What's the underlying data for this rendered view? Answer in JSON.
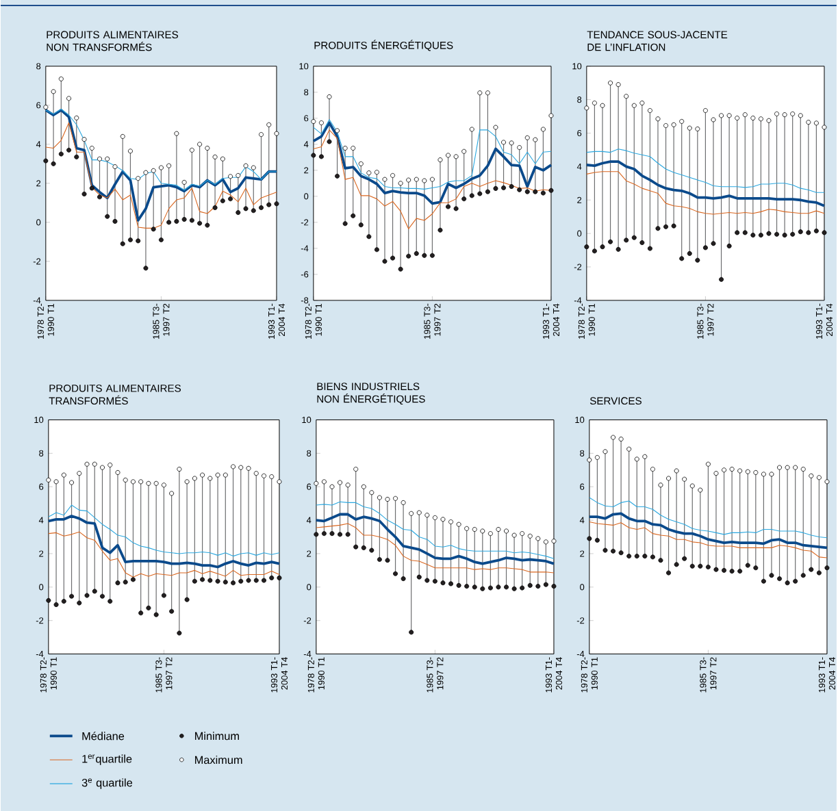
{
  "chart_data": [
    {
      "type": "line",
      "title": "PRODUITS ALIMENTAIRES NON TRANSFORMÉS",
      "legend": "bottom",
      "categories": [
        "1978 T2-1990 T1",
        null,
        null,
        null,
        null,
        null,
        null,
        null,
        null,
        null,
        null,
        null,
        null,
        null,
        null,
        "1985 T3-1997 T2",
        null,
        null,
        null,
        null,
        null,
        null,
        null,
        null,
        null,
        null,
        null,
        null,
        null,
        null,
        "1993 T1-2004 T4"
      ],
      "ylim": [
        -4,
        8
      ],
      "yticks": [
        -4,
        -2,
        0,
        2,
        4,
        6,
        8
      ],
      "series": [
        {
          "name": "Médiane",
          "color": "#0b4a8b",
          "values": [
            5.75,
            5.5,
            5.75,
            5.4,
            3.8,
            3.7,
            1.9,
            1.55,
            1.25,
            1.95,
            2.6,
            2.15,
            0.1,
            0.7,
            1.8,
            1.85,
            1.9,
            1.8,
            1.6,
            1.9,
            1.8,
            2.15,
            1.9,
            2.2,
            1.55,
            1.75,
            2.3,
            2.25,
            2.2,
            2.6,
            2.6
          ]
        },
        {
          "name": "1$^{er}$quartile",
          "color": "#d9661f",
          "values": [
            3.85,
            3.8,
            4.2,
            5.1,
            3.6,
            3.6,
            1.8,
            1.4,
            1.25,
            1.7,
            1.15,
            1.4,
            -0.25,
            -0.3,
            -0.3,
            -0.15,
            0.7,
            1.15,
            1.25,
            1.75,
            0.55,
            0.45,
            0.8,
            1.6,
            1.4,
            1.05,
            1.75,
            0.9,
            1.25,
            1.4,
            1.55
          ]
        },
        {
          "name": "3$^{e}$ quartile",
          "color": "#2aa7df",
          "values": [
            5.75,
            5.55,
            5.8,
            5.5,
            5.0,
            4.2,
            3.2,
            3.2,
            3.1,
            2.9,
            2.65,
            2.25,
            2.2,
            2.5,
            2.6,
            2.0,
            1.95,
            1.9,
            1.65,
            1.95,
            1.85,
            2.15,
            1.95,
            2.25,
            2.3,
            2.3,
            2.85,
            2.6,
            2.2,
            2.6,
            2.6
          ]
        },
        {
          "name": "Minimum",
          "type": "scatter",
          "marker": "circle",
          "color": "#231f20",
          "values": [
            3.15,
            3.0,
            3.5,
            3.7,
            3.35,
            1.45,
            1.75,
            1.3,
            0.3,
            0.05,
            -1.1,
            -0.9,
            -0.95,
            -2.35,
            -0.35,
            -0.9,
            0.0,
            0.05,
            0.15,
            0.1,
            -0.05,
            -0.15,
            0.75,
            1.1,
            1.2,
            0.5,
            0.7,
            0.6,
            0.75,
            0.9,
            0.95
          ]
        },
        {
          "name": "Maximum",
          "type": "scatter",
          "marker": "circle",
          "color": "#ffffff",
          "values": [
            5.9,
            6.7,
            7.35,
            6.35,
            5.35,
            4.25,
            3.8,
            3.25,
            3.25,
            2.85,
            4.4,
            3.65,
            2.25,
            2.55,
            2.65,
            2.8,
            2.9,
            4.55,
            2.05,
            3.7,
            4.0,
            3.8,
            3.35,
            3.25,
            2.35,
            2.4,
            2.9,
            2.8,
            4.5,
            5.0,
            4.55
          ]
        }
      ]
    },
    {
      "type": "line",
      "title": "PRODUITS ÉNERGÉTIQUES",
      "categories": [
        "1978 T2-1990 T1",
        null,
        null,
        null,
        null,
        null,
        null,
        null,
        null,
        null,
        null,
        null,
        null,
        null,
        null,
        "1985 T3-1997 T2",
        null,
        null,
        null,
        null,
        null,
        null,
        null,
        null,
        null,
        null,
        null,
        null,
        null,
        null,
        "1993 T1-2004 T4"
      ],
      "ylim": [
        -8,
        10
      ],
      "yticks": [
        -8,
        -6,
        -4,
        -2,
        0,
        2,
        4,
        6,
        8,
        10
      ],
      "series": [
        {
          "color": "#0b4a8b",
          "values": [
            4.25,
            4.6,
            5.65,
            4.6,
            2.15,
            2.25,
            1.55,
            1.3,
            0.95,
            0.25,
            0.4,
            0.3,
            0.25,
            0.25,
            0.05,
            -0.55,
            -0.45,
            0.95,
            0.65,
            0.95,
            1.35,
            1.6,
            2.35,
            3.65,
            3.05,
            2.4,
            2.35,
            0.75,
            2.25,
            2.0,
            2.4
          ]
        },
        {
          "color": "#d9661f",
          "values": [
            3.65,
            3.8,
            5.1,
            4.45,
            1.3,
            1.45,
            0.05,
            0.05,
            -0.2,
            -0.75,
            -0.4,
            -1.15,
            -2.5,
            -1.7,
            -1.85,
            -1.35,
            -0.5,
            -0.5,
            -0.2,
            0.75,
            1.0,
            0.75,
            1.0,
            1.2,
            1.05,
            0.85,
            0.6,
            0.65,
            0.4,
            0.5,
            0.45
          ]
        },
        {
          "color": "#2aa7df",
          "values": [
            5.3,
            4.8,
            5.9,
            4.95,
            3.05,
            3.05,
            1.8,
            1.45,
            1.35,
            0.75,
            0.65,
            0.65,
            0.6,
            0.6,
            0.55,
            0.65,
            0.75,
            1.1,
            1.2,
            1.2,
            1.6,
            5.1,
            5.1,
            4.6,
            3.4,
            3.2,
            2.5,
            3.4,
            2.5,
            3.4,
            3.45
          ]
        },
        {
          "type": "scatter",
          "marker": "circle",
          "color": "#231f20",
          "values": [
            3.15,
            3.05,
            4.2,
            1.55,
            -2.1,
            -1.5,
            -2.2,
            -3.1,
            -4.1,
            -5.0,
            -4.75,
            -5.6,
            -4.6,
            -4.4,
            -4.55,
            -4.55,
            -2.6,
            -0.8,
            -0.95,
            -0.2,
            0.05,
            0.2,
            0.35,
            0.6,
            0.65,
            0.75,
            0.5,
            0.35,
            0.35,
            0.25,
            0.45
          ]
        },
        {
          "type": "scatter",
          "marker": "circle",
          "color": "#ffffff",
          "values": [
            5.75,
            5.65,
            7.65,
            5.05,
            3.7,
            3.7,
            2.5,
            1.8,
            1.85,
            1.3,
            1.6,
            1.0,
            1.25,
            1.3,
            1.2,
            1.3,
            2.8,
            3.15,
            3.05,
            3.45,
            5.15,
            7.95,
            7.95,
            5.3,
            4.15,
            4.1,
            3.75,
            4.5,
            4.35,
            5.15,
            6.2
          ]
        }
      ]
    },
    {
      "type": "line",
      "title": "TENDANCE SOUS-JACENTE DE L’INFLATION",
      "categories": [
        "1978 T2-1990 T1",
        null,
        null,
        null,
        null,
        null,
        null,
        null,
        null,
        null,
        null,
        null,
        null,
        null,
        null,
        "1985 T3-1997 T2",
        null,
        null,
        null,
        null,
        null,
        null,
        null,
        null,
        null,
        null,
        null,
        null,
        null,
        null,
        "1993 T1-2004 T4"
      ],
      "ylim": [
        -4,
        10
      ],
      "yticks": [
        -4,
        -2,
        0,
        2,
        4,
        6,
        8,
        10
      ],
      "series": [
        {
          "color": "#0b4a8b",
          "values": [
            4.1,
            4.05,
            4.2,
            4.3,
            4.3,
            4.0,
            3.85,
            3.45,
            3.2,
            2.9,
            2.7,
            2.6,
            2.55,
            2.4,
            2.15,
            2.15,
            2.1,
            2.15,
            2.25,
            2.1,
            2.1,
            2.1,
            2.1,
            2.1,
            2.05,
            2.05,
            2.05,
            2.0,
            1.9,
            1.85,
            1.65
          ]
        },
        {
          "color": "#d9661f",
          "values": [
            3.55,
            3.65,
            3.7,
            3.7,
            3.7,
            3.15,
            2.95,
            2.7,
            2.55,
            2.4,
            1.8,
            1.65,
            1.6,
            1.5,
            1.3,
            1.2,
            1.15,
            1.2,
            1.25,
            1.2,
            1.25,
            1.2,
            1.3,
            1.45,
            1.4,
            1.3,
            1.25,
            1.2,
            1.2,
            1.35,
            1.2
          ]
        },
        {
          "color": "#2aa7df",
          "values": [
            4.85,
            4.9,
            4.9,
            4.85,
            5.05,
            4.95,
            4.8,
            4.7,
            4.6,
            4.2,
            3.85,
            3.65,
            3.5,
            3.35,
            3.2,
            3.05,
            2.85,
            2.8,
            2.8,
            2.8,
            2.75,
            2.8,
            2.95,
            2.95,
            3.0,
            3.0,
            2.9,
            2.7,
            2.6,
            2.45,
            2.45
          ]
        },
        {
          "type": "scatter",
          "marker": "circle",
          "color": "#231f20",
          "values": [
            -0.8,
            -1.05,
            -0.8,
            -0.5,
            -0.95,
            -0.4,
            -0.25,
            -0.55,
            -0.9,
            0.3,
            0.4,
            0.45,
            -1.5,
            -1.2,
            -1.6,
            -0.85,
            -0.6,
            -2.75,
            -0.75,
            0.05,
            0.05,
            -0.1,
            -0.1,
            0.0,
            -0.05,
            -0.1,
            -0.05,
            0.1,
            0.05,
            0.15,
            0.05
          ]
        },
        {
          "type": "scatter",
          "marker": "circle",
          "color": "#ffffff",
          "values": [
            7.5,
            7.8,
            7.65,
            9.0,
            8.9,
            8.2,
            7.65,
            7.8,
            7.35,
            6.85,
            6.45,
            6.5,
            6.7,
            6.3,
            6.25,
            7.35,
            6.8,
            7.05,
            7.05,
            6.9,
            7.1,
            6.9,
            6.85,
            6.75,
            7.15,
            7.1,
            7.15,
            7.05,
            6.65,
            6.6,
            6.35
          ]
        }
      ]
    },
    {
      "type": "line",
      "title": "PRODUITS ALIMENTAIRES TRANSFORMÉS",
      "categories": [
        "1978 T2-1990 T1",
        null,
        null,
        null,
        null,
        null,
        null,
        null,
        null,
        null,
        null,
        null,
        null,
        null,
        null,
        "1985 T3-1997 T2",
        null,
        null,
        null,
        null,
        null,
        null,
        null,
        null,
        null,
        null,
        null,
        null,
        null,
        null,
        "1993 T1-2004 T4"
      ],
      "ylim": [
        -4,
        10
      ],
      "yticks": [
        -4,
        -2,
        0,
        2,
        4,
        6,
        8,
        10
      ],
      "series": [
        {
          "color": "#0b4a8b",
          "values": [
            3.95,
            4.05,
            4.05,
            4.25,
            4.1,
            3.85,
            3.8,
            2.35,
            2.05,
            2.5,
            1.5,
            1.55,
            1.55,
            1.55,
            1.55,
            1.5,
            1.4,
            1.4,
            1.45,
            1.4,
            1.3,
            1.3,
            1.2,
            1.4,
            1.55,
            1.4,
            1.3,
            1.45,
            1.4,
            1.5,
            1.4
          ]
        },
        {
          "color": "#d9661f",
          "values": [
            3.2,
            3.25,
            3.05,
            3.15,
            3.3,
            2.95,
            2.8,
            2.15,
            1.6,
            1.7,
            0.85,
            0.6,
            0.8,
            0.65,
            0.8,
            0.75,
            0.7,
            0.85,
            0.85,
            1.0,
            0.8,
            0.95,
            0.8,
            0.65,
            1.0,
            0.7,
            0.75,
            0.75,
            0.75,
            0.95,
            0.75
          ]
        },
        {
          "color": "#2aa7df",
          "values": [
            4.2,
            4.45,
            4.3,
            4.9,
            4.6,
            4.55,
            4.15,
            3.75,
            3.45,
            3.1,
            3.0,
            2.65,
            2.45,
            2.35,
            2.2,
            2.1,
            2.05,
            2.0,
            2.05,
            2.05,
            2.1,
            2.05,
            1.9,
            2.05,
            1.85,
            2.0,
            2.05,
            1.9,
            2.05,
            1.95,
            2.05
          ]
        },
        {
          "type": "scatter",
          "marker": "circle",
          "color": "#231f20",
          "values": [
            -0.8,
            -1.05,
            -0.85,
            -0.55,
            -0.95,
            -0.5,
            -0.25,
            -0.55,
            -0.85,
            0.25,
            0.3,
            0.45,
            -1.55,
            -1.25,
            -1.65,
            -0.5,
            -1.45,
            -2.75,
            -0.75,
            0.35,
            0.45,
            0.4,
            0.35,
            0.3,
            0.25,
            0.35,
            0.4,
            0.4,
            0.4,
            0.55,
            0.55
          ]
        },
        {
          "type": "scatter",
          "marker": "circle",
          "color": "#ffffff",
          "values": [
            6.4,
            6.3,
            6.7,
            6.25,
            6.8,
            7.35,
            7.35,
            7.15,
            7.3,
            6.85,
            6.4,
            6.3,
            6.3,
            6.2,
            6.2,
            6.1,
            5.6,
            7.05,
            6.3,
            6.5,
            6.7,
            6.5,
            6.7,
            6.7,
            7.2,
            7.15,
            7.1,
            6.8,
            6.65,
            6.6,
            6.3
          ]
        }
      ]
    },
    {
      "type": "line",
      "title": "BIENS INDUSTRIELS NON ÉNERGÉTIQUES",
      "categories": [
        "1978 T2-1990 T1",
        null,
        null,
        null,
        null,
        null,
        null,
        null,
        null,
        null,
        null,
        null,
        null,
        null,
        null,
        "1985 T3-1997 T2",
        null,
        null,
        null,
        null,
        null,
        null,
        null,
        null,
        null,
        null,
        null,
        null,
        null,
        null,
        "1993 T1-2004 T4"
      ],
      "ylim": [
        -4,
        10
      ],
      "yticks": [
        -4,
        -2,
        0,
        2,
        4,
        6,
        8,
        10
      ],
      "series": [
        {
          "color": "#0b4a8b",
          "values": [
            4.0,
            3.95,
            4.15,
            4.35,
            4.35,
            4.05,
            4.2,
            4.1,
            3.95,
            3.45,
            3.0,
            2.45,
            2.35,
            2.25,
            2.0,
            1.75,
            1.7,
            1.7,
            1.85,
            1.7,
            1.5,
            1.4,
            1.5,
            1.6,
            1.75,
            1.7,
            1.6,
            1.65,
            1.6,
            1.55,
            1.4
          ]
        },
        {
          "color": "#d9661f",
          "values": [
            3.55,
            3.6,
            3.65,
            3.7,
            3.8,
            3.55,
            3.1,
            3.1,
            3.0,
            2.85,
            2.5,
            1.85,
            1.6,
            1.55,
            1.35,
            1.15,
            1.15,
            1.15,
            1.15,
            1.15,
            1.05,
            1.1,
            1.05,
            1.15,
            1.15,
            1.1,
            1.05,
            0.9,
            0.9,
            0.9,
            0.85
          ]
        },
        {
          "color": "#2aa7df",
          "values": [
            4.9,
            4.95,
            4.9,
            5.1,
            5.05,
            5.05,
            4.8,
            4.7,
            4.4,
            4.0,
            3.75,
            3.45,
            3.4,
            3.0,
            2.85,
            2.45,
            2.4,
            2.5,
            2.3,
            2.2,
            2.15,
            2.15,
            2.15,
            2.15,
            2.15,
            2.05,
            2.1,
            2.05,
            1.95,
            1.85,
            1.7
          ]
        },
        {
          "type": "scatter",
          "marker": "circle",
          "color": "#231f20",
          "values": [
            3.15,
            3.2,
            3.2,
            3.15,
            3.15,
            2.4,
            2.35,
            2.2,
            1.65,
            1.6,
            0.8,
            0.5,
            -2.7,
            0.6,
            0.4,
            0.35,
            0.25,
            0.2,
            0.1,
            0.05,
            0.0,
            -0.1,
            -0.05,
            0.0,
            0.0,
            -0.1,
            -0.05,
            0.1,
            0.05,
            0.15,
            0.05
          ]
        },
        {
          "type": "scatter",
          "marker": "circle",
          "color": "#ffffff",
          "values": [
            6.2,
            6.3,
            6.0,
            6.25,
            6.1,
            7.05,
            6.0,
            5.65,
            5.35,
            5.25,
            5.3,
            5.05,
            4.4,
            4.45,
            4.3,
            4.15,
            4.05,
            3.9,
            3.75,
            3.5,
            3.45,
            3.35,
            3.2,
            3.45,
            3.35,
            3.1,
            3.2,
            3.05,
            2.9,
            2.7,
            2.75
          ]
        }
      ]
    },
    {
      "type": "line",
      "title": "SERVICES",
      "categories": [
        "1978 T2-1990 T1",
        null,
        null,
        null,
        null,
        null,
        null,
        null,
        null,
        null,
        null,
        null,
        null,
        null,
        null,
        "1985 T3-1997 T2",
        null,
        null,
        null,
        null,
        null,
        null,
        null,
        null,
        null,
        null,
        null,
        null,
        null,
        null,
        "1993 T1-2004 T4"
      ],
      "ylim": [
        -4,
        10
      ],
      "yticks": [
        -4,
        -2,
        0,
        2,
        4,
        6,
        8,
        10
      ],
      "series": [
        {
          "color": "#0b4a8b",
          "values": [
            4.2,
            4.2,
            4.1,
            4.35,
            4.4,
            4.1,
            3.95,
            3.95,
            3.75,
            3.7,
            3.45,
            3.3,
            3.2,
            3.2,
            3.05,
            2.85,
            2.75,
            2.65,
            2.7,
            2.65,
            2.65,
            2.65,
            2.6,
            2.8,
            2.85,
            2.65,
            2.65,
            2.5,
            2.45,
            2.4,
            2.35
          ]
        },
        {
          "color": "#d9661f",
          "values": [
            3.9,
            3.8,
            3.75,
            3.7,
            3.85,
            3.55,
            3.45,
            3.55,
            3.2,
            3.1,
            3.05,
            2.85,
            2.85,
            2.7,
            2.65,
            2.5,
            2.45,
            2.45,
            2.45,
            2.35,
            2.35,
            2.35,
            2.35,
            2.35,
            2.5,
            2.45,
            2.35,
            2.2,
            2.15,
            1.8,
            1.75
          ]
        },
        {
          "color": "#2aa7df",
          "values": [
            5.35,
            5.05,
            4.85,
            4.8,
            5.05,
            5.15,
            4.8,
            4.8,
            4.65,
            4.3,
            4.05,
            3.9,
            3.75,
            3.5,
            3.4,
            3.35,
            3.25,
            3.15,
            3.25,
            3.25,
            3.3,
            3.25,
            3.45,
            3.45,
            3.35,
            3.35,
            3.35,
            3.25,
            3.1,
            3.0,
            2.95
          ]
        },
        {
          "type": "scatter",
          "marker": "circle",
          "color": "#231f20",
          "values": [
            2.9,
            2.8,
            2.2,
            2.15,
            2.05,
            1.85,
            1.85,
            1.85,
            1.8,
            1.6,
            0.85,
            1.35,
            1.7,
            1.25,
            1.25,
            1.2,
            1.05,
            1.0,
            0.95,
            0.95,
            1.3,
            1.15,
            0.35,
            0.7,
            0.5,
            0.25,
            0.35,
            0.7,
            1.05,
            0.85,
            1.15
          ]
        },
        {
          "type": "scatter",
          "marker": "circle",
          "color": "#ffffff",
          "values": [
            7.6,
            7.75,
            8.1,
            8.95,
            8.85,
            8.25,
            7.65,
            7.8,
            7.05,
            6.1,
            6.5,
            6.95,
            6.45,
            6.05,
            5.8,
            7.35,
            6.8,
            7.0,
            7.05,
            6.95,
            6.9,
            6.85,
            6.75,
            6.75,
            7.15,
            7.15,
            7.15,
            7.05,
            6.65,
            6.55,
            6.3
          ]
        }
      ]
    }
  ]
}
